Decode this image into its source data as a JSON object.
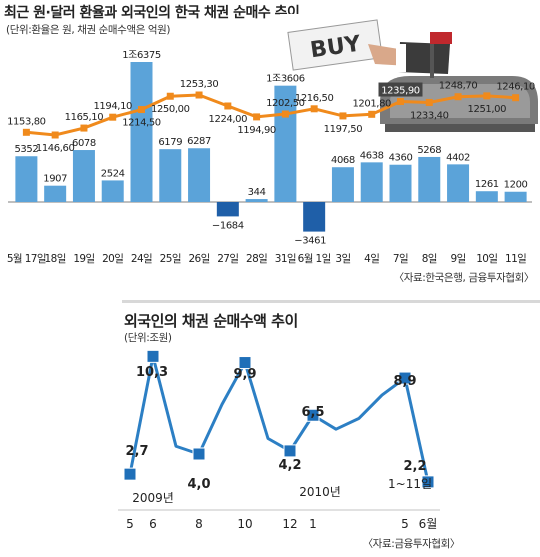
{
  "top": {
    "title": "최근 원·달러 환율과 외국인의 한국 채권 순매수 추이",
    "subtitle": "(단위:환율은 원, 채권 순매수액은 억원)",
    "source": "〈자료:한국은행, 금융투자협회〉",
    "photo_text": "BUY"
  },
  "bottom": {
    "title": "외국인의 채권 순매수액 추이",
    "subtitle": "(단위:조원)",
    "source": "〈자료:금융투자협회〉"
  },
  "colors": {
    "bar": "#5ba3d9",
    "bar_negative": "#1f5fa8",
    "line_orange": "#f08a1c",
    "line_blue": "#2c7fc4",
    "marker_blue": "#1f6fb8"
  },
  "chart_data": [
    {
      "type": "bar",
      "series": [
        {
          "values": [
            5352,
            1907,
            6078,
            2524,
            16375,
            6179,
            6287,
            -1684,
            344,
            13606,
            -3461,
            4068,
            4638,
            4360,
            5268,
            4402,
            1261,
            1200
          ],
          "labels": [
            "5352",
            "1907",
            "6078",
            "2524",
            "1조6375",
            "6179",
            "6287",
            "−1684",
            "344",
            "1조3606",
            "−3461",
            "4068",
            "4638",
            "4360",
            "5268",
            "4402",
            "1261",
            "1200"
          ]
        }
      ],
      "categories": [
        "5월 17일",
        "18일",
        "19일",
        "20일",
        "24일",
        "25일",
        "26일",
        "27일",
        "28일",
        "31일",
        "6월 1일",
        "3일",
        "4일",
        "7일",
        "8일",
        "9일",
        "10일",
        "11일"
      ],
      "overlay_line": {
        "type": "line",
        "values": [
          1153.8,
          1146.6,
          1165.1,
          1194.1,
          1214.5,
          1250.0,
          1253.3,
          1224.0,
          1194.9,
          1202.5,
          1216.5,
          1197.5,
          1201.8,
          1235.9,
          1233.4,
          1248.7,
          1251.0,
          1246.1
        ],
        "labels": [
          "1153,80",
          "1146,60",
          "1165,10",
          "1194,10",
          "1214,50",
          "1250,00",
          "1253,30",
          "1224,00",
          "1194,90",
          "1202,50",
          "1216,50",
          "1197,50",
          "1201,80",
          "1235,90",
          "1233,40",
          "1248,70",
          "1251,00",
          "1246,10"
        ]
      }
    },
    {
      "type": "line",
      "x": [
        "5",
        "6",
        "7",
        "8",
        "9",
        "10",
        "11",
        "12",
        "1",
        "2",
        "3",
        "4",
        "5",
        "6월"
      ],
      "x_ticks": [
        "5",
        "6",
        "",
        "8",
        "",
        "10",
        "",
        "12",
        "1",
        "",
        "",
        "",
        "5",
        "6월"
      ],
      "values": [
        2.7,
        10.3,
        4.5,
        4.0,
        7.2,
        9.9,
        5.0,
        4.2,
        6.5,
        5.6,
        6.3,
        7.8,
        8.9,
        2.2
      ],
      "labels": [
        "2.7",
        "10.3",
        "",
        "4.0",
        "",
        "9.9",
        "",
        "4.2",
        "6.5",
        "",
        "",
        "",
        "8.9",
        "2.2"
      ],
      "label_text": [
        "2,7",
        "10,3",
        "",
        "4,0",
        "",
        "9,9",
        "",
        "4,2",
        "6,5",
        "",
        "",
        "",
        "8,9",
        "2,2"
      ],
      "markers": [
        0,
        1,
        3,
        5,
        7,
        8,
        12,
        13
      ],
      "year_labels": [
        "2009년",
        "2010년"
      ],
      "annotation": "1~11일"
    }
  ]
}
